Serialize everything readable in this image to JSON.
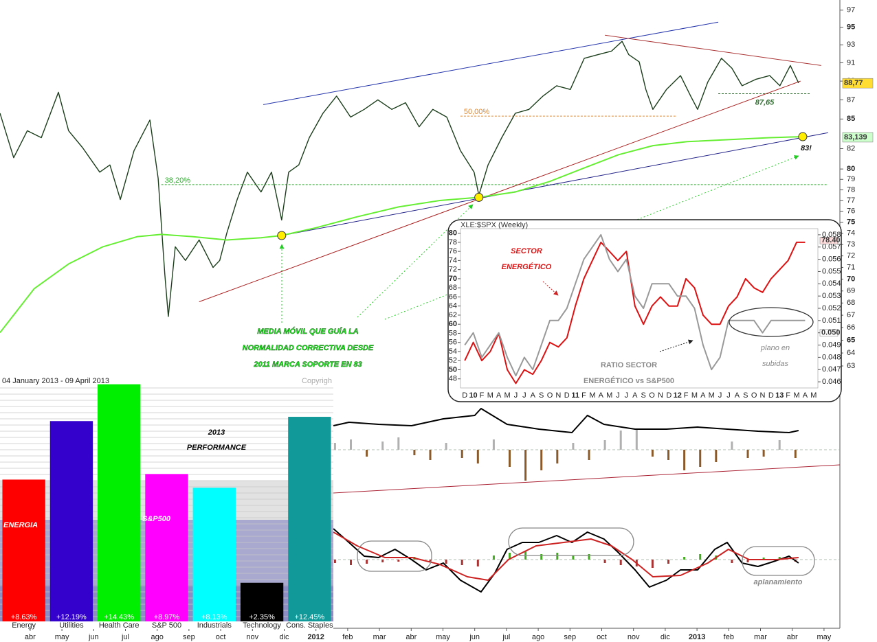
{
  "chart_data": [
    {
      "type": "line",
      "log_scale": true,
      "xlim": [
        -0.95,
        25.5
      ],
      "ylim": [
        63,
        98.2
      ],
      "xticks": [
        {
          "value": 0,
          "label": "abr"
        },
        {
          "value": 1,
          "label": "may"
        },
        {
          "value": 2,
          "label": "jun"
        },
        {
          "value": 3,
          "label": "jul"
        },
        {
          "value": 4,
          "label": "ago"
        },
        {
          "value": 5,
          "label": "sep"
        },
        {
          "value": 6,
          "label": "oct"
        },
        {
          "value": 7,
          "label": "nov"
        },
        {
          "value": 8,
          "label": "dic"
        },
        {
          "value": 9,
          "label": "2012"
        },
        {
          "value": 10,
          "label": "feb"
        },
        {
          "value": 11,
          "label": "mar"
        },
        {
          "value": 12,
          "label": "abr"
        },
        {
          "value": 13,
          "label": "may"
        },
        {
          "value": 14,
          "label": "jun"
        },
        {
          "value": 15,
          "label": "jul"
        },
        {
          "value": 16,
          "label": "ago"
        },
        {
          "value": 17,
          "label": "sep"
        },
        {
          "value": 18,
          "label": "oct"
        },
        {
          "value": 19,
          "label": "nov"
        },
        {
          "value": 20,
          "label": "dic"
        },
        {
          "value": 21,
          "label": "2013"
        },
        {
          "value": 22,
          "label": "feb"
        },
        {
          "value": 23,
          "label": "mar"
        },
        {
          "value": 24,
          "label": "abr"
        },
        {
          "value": 25,
          "label": "may"
        }
      ],
      "yticks": [
        97,
        95,
        93,
        91,
        89,
        87,
        85,
        82,
        80,
        79,
        78,
        77,
        76,
        75,
        74,
        73,
        72,
        71,
        70,
        69,
        68,
        67,
        66,
        65,
        64,
        63
      ],
      "series": [
        {
          "color": "#1b3d1b",
          "x": [
            -0.95,
            -0.52,
            -0.09,
            0.35,
            0.89,
            1.21,
            1.65,
            2.19,
            2.51,
            2.84,
            3.27,
            3.77,
            4.03,
            4.24,
            4.35,
            4.57,
            4.89,
            5.32,
            5.76,
            5.97,
            6.19,
            6.52,
            6.84,
            7.27,
            7.6,
            7.92,
            8.14,
            8.46,
            8.79,
            9.22,
            9.65,
            10.09,
            10.52,
            10.95,
            11.39,
            11.82,
            12.25,
            12.68,
            13.12,
            13.55,
            13.98,
            14.13,
            14.42,
            14.85,
            15.28,
            15.71,
            16.15,
            16.58,
            17.01,
            17.45,
            17.88,
            18.31,
            18.64,
            18.85,
            19.18,
            19.39,
            19.61,
            20.04,
            20.48,
            20.8,
            21.02,
            21.34,
            21.77,
            22.1,
            22.42,
            22.86,
            23.29,
            23.61,
            23.94,
            24.2
          ],
          "values": [
            85.6,
            81.1,
            83.8,
            83.1,
            87.8,
            83.8,
            82.1,
            79.7,
            80.4,
            77.1,
            81.8,
            84.9,
            79.1,
            70.4,
            66.9,
            72.8,
            71.6,
            73.4,
            71.0,
            71.6,
            74.0,
            77.1,
            79.7,
            77.8,
            79.7,
            75.2,
            79.7,
            80.4,
            83.1,
            85.6,
            87.4,
            85.2,
            86.0,
            87.0,
            86.0,
            86.7,
            84.2,
            86.0,
            85.2,
            81.8,
            79.7,
            77.5,
            80.4,
            83.1,
            85.6,
            86.0,
            87.4,
            88.5,
            88.1,
            91.5,
            91.9,
            92.3,
            93.4,
            91.9,
            91.1,
            88.1,
            86.0,
            88.1,
            89.6,
            87.4,
            86.0,
            88.9,
            91.5,
            90.4,
            88.5,
            89.2,
            89.6,
            88.5,
            90.7,
            88.8
          ]
        },
        {
          "color": "#66ee33",
          "x": [
            -0.95,
            0.13,
            1.21,
            2.29,
            3.38,
            4.13,
            5.11,
            6.19,
            7.27,
            7.92,
            9.0,
            10.3,
            11.6,
            12.9,
            14.13,
            15.28,
            16.36,
            17.45,
            18.53,
            19.61,
            20.69,
            21.99,
            23.29,
            24.37
          ],
          "values": [
            65.6,
            69.2,
            71.3,
            72.8,
            73.7,
            73.9,
            73.7,
            73.4,
            73.6,
            73.8,
            74.5,
            75.5,
            76.4,
            77.0,
            77.3,
            77.8,
            78.8,
            80.1,
            81.4,
            82.3,
            82.7,
            82.9,
            83.1,
            83.2
          ]
        }
      ],
      "trendlines": [
        {
          "color": "#2233aa",
          "x": [
            7.34,
            21.67
          ],
          "values": [
            86.5,
            95.6
          ]
        },
        {
          "color": "#222288",
          "x": [
            7.92,
            25.13
          ],
          "values": [
            73.8,
            83.6
          ]
        },
        {
          "color": "#aa2222",
          "x": [
            5.32,
            24.26
          ],
          "values": [
            68.1,
            89.0
          ]
        },
        {
          "color": "#aa3333",
          "x": [
            18.1,
            24.91
          ],
          "values": [
            94.1,
            90.7
          ]
        }
      ],
      "levels": [
        {
          "text": "38,20%",
          "price": 78.5,
          "x": [
            4.13,
            25.13
          ],
          "color": "#33aa33"
        },
        {
          "text": "50,00%",
          "price": 85.3,
          "x": [
            13.55,
            20.37
          ],
          "color": "#dd8833"
        },
        {
          "text": "87,65",
          "price": 87.65,
          "x": [
            21.67,
            24.59
          ],
          "color": "#2d6b2d",
          "emphasis": true
        }
      ],
      "markers": [
        {
          "x": 7.92,
          "value": 73.8
        },
        {
          "x": 14.13,
          "value": 77.3
        },
        {
          "x": 24.33,
          "value": 83.2
        }
      ],
      "last_values": [
        {
          "value": 88.77,
          "label": "88,77",
          "color": "#ffdd33"
        },
        {
          "value": 83.139,
          "label": "83,139",
          "color": "#ccffcc"
        }
      ],
      "annotations": [
        "MEDIA MÓVIL QUE GUÍA LA",
        "NORMALIDAD CORRECTIVA DESDE",
        "2011 MARCA SOPORTE EN 83",
        "83!"
      ]
    },
    {
      "type": "line",
      "xlim": [
        -0.95,
        25.5
      ],
      "ylim": [
        -65,
        65
      ],
      "series": [
        {
          "color": "#000000",
          "x": [
            9.55,
            10.04,
            10.97,
            12.01,
            13.01,
            14.0,
            14.2,
            15.02,
            16.02,
            17.06,
            17.55,
            18.07,
            19.05,
            20.04,
            21.02,
            21.95,
            22.92,
            23.9,
            24.2
          ],
          "values": [
            35,
            40,
            37,
            35,
            45,
            50,
            60,
            37,
            30,
            25,
            50,
            37,
            30,
            30,
            33,
            30,
            27,
            25,
            28
          ]
        }
      ],
      "histogram": {
        "colors": [
          "#b0b0b0",
          "#8b5a2b"
        ],
        "x": [
          9.6,
          10.1,
          10.6,
          11.1,
          11.6,
          12.1,
          12.6,
          13.1,
          13.6,
          14.1,
          14.6,
          15.1,
          15.6,
          16.1,
          16.6,
          17.1,
          17.6,
          18.1,
          18.6,
          19.1,
          19.6,
          20.1,
          20.6,
          21.1,
          21.6,
          22.1,
          22.6,
          23.1,
          23.6,
          24.1
        ],
        "values": [
          10,
          15,
          -10,
          12,
          18,
          -8,
          -15,
          10,
          -12,
          -20,
          15,
          -25,
          -45,
          -30,
          -20,
          10,
          -15,
          14,
          28,
          30,
          -10,
          -15,
          -30,
          -25,
          -18,
          12,
          -12,
          -10,
          14,
          -12
        ]
      },
      "trendlines": [
        {
          "color": "#aa2233",
          "x": [
            9.55,
            25.5
          ],
          "values": [
            -63,
            -22
          ]
        }
      ]
    },
    {
      "type": "line",
      "xlim": [
        -0.95,
        25.5
      ],
      "ylim": [
        -60,
        60
      ],
      "series": [
        {
          "color": "#000000",
          "x": [
            9.55,
            10.04,
            10.52,
            10.97,
            11.49,
            12.01,
            12.47,
            13.01,
            13.55,
            14.2,
            14.63,
            15.02,
            15.5,
            16.02,
            16.58,
            17.06,
            17.55,
            18.07,
            18.53,
            19.05,
            19.5,
            20.04,
            20.48,
            21.02,
            21.56,
            21.95,
            22.42,
            22.92,
            23.4,
            23.9,
            24.2
          ],
          "values": [
            45,
            25,
            5,
            3,
            15,
            0,
            -15,
            -5,
            -30,
            -47,
            -20,
            15,
            25,
            25,
            35,
            25,
            40,
            30,
            10,
            -15,
            -40,
            -30,
            -15,
            -15,
            15,
            25,
            -5,
            -10,
            -3,
            5,
            -5
          ]
        },
        {
          "color": "#cc2222",
          "x": [
            9.55,
            10.3,
            11.17,
            12.03,
            12.9,
            13.77,
            14.42,
            15.06,
            15.93,
            16.8,
            17.66,
            18.31,
            18.96,
            19.61,
            20.48,
            21.34,
            21.99,
            22.64,
            23.51,
            24.2
          ],
          "values": [
            40,
            20,
            3,
            3,
            -7,
            -25,
            -30,
            0,
            20,
            25,
            30,
            20,
            0,
            -25,
            -23,
            -5,
            15,
            0,
            0,
            3
          ]
        }
      ],
      "histogram": {
        "colors": [
          "#44aa22",
          "#aa3333"
        ],
        "x": [
          9.6,
          10.1,
          10.6,
          11.1,
          11.6,
          12.1,
          12.6,
          13.1,
          13.6,
          14.1,
          14.6,
          15.1,
          15.6,
          16.1,
          16.6,
          17.1,
          17.6,
          18.1,
          18.6,
          19.1,
          19.6,
          20.1,
          20.6,
          21.1,
          21.6,
          22.1,
          22.6,
          23.1,
          23.6,
          24.1
        ],
        "values": [
          -5,
          -8,
          -6,
          -4,
          -3,
          4,
          -3,
          -6,
          -8,
          -10,
          6,
          10,
          12,
          8,
          10,
          6,
          8,
          -5,
          -8,
          -10,
          -12,
          -6,
          4,
          8,
          6,
          -5,
          -4,
          3,
          4,
          -3
        ]
      },
      "annotations": [
        "aplanamiento"
      ]
    },
    {
      "type": "line",
      "title": "XLE:$SPX (Weekly)",
      "categories": [
        "D",
        "10",
        "F",
        "M",
        "A",
        "M",
        "J",
        "J",
        "A",
        "S",
        "O",
        "N",
        "D",
        "11",
        "F",
        "M",
        "A",
        "M",
        "J",
        "J",
        "A",
        "S",
        "O",
        "N",
        "D",
        "12",
        "F",
        "M",
        "A",
        "M",
        "J",
        "J",
        "A",
        "S",
        "O",
        "N",
        "D",
        "13",
        "F",
        "M",
        "A",
        "M"
      ],
      "ylim": [
        46,
        81
      ],
      "yticks": [
        80,
        78,
        76,
        74,
        72,
        70,
        68,
        66,
        64,
        62,
        60,
        58,
        56,
        54,
        52,
        50,
        48
      ],
      "y2lim": [
        0.0455,
        0.0585
      ],
      "y2ticks": [
        0.058,
        0.057,
        0.056,
        0.055,
        0.054,
        0.053,
        0.052,
        0.051,
        0.05,
        0.049,
        0.048,
        0.047,
        0.046
      ],
      "series": [
        {
          "color": "#dd1111",
          "values": [
            52,
            56,
            52,
            54,
            58,
            50,
            47,
            50,
            49,
            52,
            56,
            55,
            57,
            64,
            70,
            74,
            78,
            76,
            74,
            76,
            64,
            60,
            64,
            66,
            64,
            64,
            70,
            68,
            62,
            60,
            60,
            64,
            66,
            70,
            68,
            67,
            70,
            72,
            74,
            78,
            78,
            null
          ]
        },
        {
          "color": "#999999",
          "axis": "y2",
          "values": [
            0.049,
            0.05,
            0.048,
            0.049,
            0.05,
            0.048,
            0.0465,
            0.048,
            0.047,
            0.049,
            0.051,
            0.051,
            0.052,
            0.054,
            0.056,
            0.057,
            0.058,
            0.056,
            0.055,
            0.056,
            0.053,
            0.052,
            0.054,
            0.054,
            0.054,
            0.053,
            0.053,
            0.052,
            0.049,
            0.047,
            0.048,
            0.051,
            0.051,
            0.051,
            0.051,
            0.05,
            0.051,
            0.051,
            0.051,
            0.051,
            0.051,
            null
          ]
        }
      ],
      "last_values": [
        {
          "value": 78.4,
          "label": "78.40",
          "color": "#ffdddd"
        },
        {
          "value": 0.05,
          "label": "0.050",
          "color": "#ffffff",
          "axis": "y2"
        }
      ],
      "annotations": [
        "SECTOR",
        "ENERGÉTICO",
        "RATIO SECTOR",
        "ENERGÉTICO vs S&P500",
        "plano en",
        "subidas"
      ]
    },
    {
      "type": "bar",
      "title": [
        "2013",
        "PERFORMANCE"
      ],
      "subtitle": "04 January 2013 - 09 April 2013",
      "note": "Copyrigh",
      "categories": [
        "Energy",
        "Utilities",
        "Health Care",
        "S&P 500",
        "Industrials",
        "Technology",
        "Cons. Staples"
      ],
      "values": [
        8.63,
        12.19,
        14.43,
        8.97,
        8.13,
        2.35,
        12.45
      ],
      "value_labels": [
        "+8.63%",
        "+12.19%",
        "+14.43%",
        "+8.97%",
        "+8.13%",
        "+2.35%",
        "+12.45%"
      ],
      "colors": [
        "#ff0000",
        "#3300cc",
        "#00ee00",
        "#ff00ff",
        "#00ffff",
        "#000000",
        "#119999"
      ],
      "ylim": [
        0,
        15
      ],
      "annotations": [
        "ENERGIA",
        "S&P500"
      ]
    }
  ]
}
